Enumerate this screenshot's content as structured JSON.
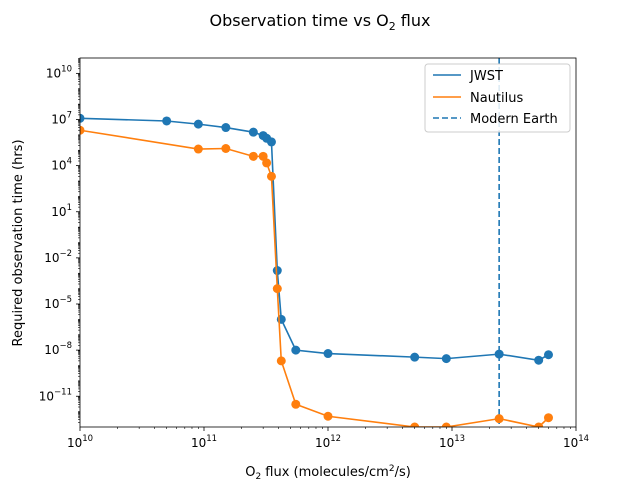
{
  "chart_data": {
    "type": "line",
    "title": {
      "pre": "Observation time vs O",
      "sub": "2",
      "post": " flux"
    },
    "xlabel": {
      "pre": "O",
      "sub1": "2",
      "mid": " flux (molecules/cm",
      "sup": "2",
      "post": "/s)"
    },
    "ylabel": "Required observation time (hrs)",
    "xscale": "log",
    "yscale": "log",
    "xlim": [
      10000000000.0,
      100000000000000.0
    ],
    "ylim": [
      1e-13,
      100000000000.0
    ],
    "xticks": [
      {
        "exp": 10,
        "label": "10",
        "sup": "10"
      },
      {
        "exp": 11,
        "label": "10",
        "sup": "11"
      },
      {
        "exp": 12,
        "label": "10",
        "sup": "12"
      },
      {
        "exp": 13,
        "label": "10",
        "sup": "13"
      },
      {
        "exp": 14,
        "label": "10",
        "sup": "14"
      }
    ],
    "yticks": [
      {
        "exp": -11,
        "label": "10",
        "sup": "−11"
      },
      {
        "exp": -8,
        "label": "10",
        "sup": "−8"
      },
      {
        "exp": -5,
        "label": "10",
        "sup": "−5"
      },
      {
        "exp": -2,
        "label": "10",
        "sup": "−2"
      },
      {
        "exp": 1,
        "label": "10",
        "sup": "1"
      },
      {
        "exp": 4,
        "label": "10",
        "sup": "4"
      },
      {
        "exp": 7,
        "label": "10",
        "sup": "7"
      },
      {
        "exp": 10,
        "label": "10",
        "sup": "10"
      }
    ],
    "grid": false,
    "legend_position": "top-right",
    "series": [
      {
        "name": "JWST",
        "color": "#1f77b4",
        "marker": "circle",
        "x": [
          10000000000.0,
          50000000000.0,
          90000000000.0,
          150000000000.0,
          250000000000.0,
          300000000000.0,
          320000000000.0,
          350000000000.0,
          390000000000.0,
          420000000000.0,
          550000000000.0,
          1000000000000.0,
          5000000000000.0,
          9000000000000.0,
          24000000000000.0,
          50000000000000.0,
          60000000000000.0
        ],
        "y": [
          12000000.0,
          8000000.0,
          5000000.0,
          3000000.0,
          1500000.0,
          900000.0,
          600000.0,
          350000.0,
          0.0015,
          1e-06,
          1e-08,
          6e-09,
          3.5e-09,
          2.8e-09,
          5.5e-09,
          2.2e-09,
          5e-09
        ]
      },
      {
        "name": "Nautilus",
        "color": "#ff7f0e",
        "marker": "circle",
        "x": [
          10000000000.0,
          90000000000.0,
          150000000000.0,
          250000000000.0,
          300000000000.0,
          320000000000.0,
          350000000000.0,
          390000000000.0,
          420000000000.0,
          550000000000.0,
          1000000000000.0,
          5000000000000.0,
          9000000000000.0,
          24000000000000.0,
          50000000000000.0,
          60000000000000.0
        ],
        "y": [
          2000000.0,
          120000.0,
          130000.0,
          40000.0,
          40000.0,
          15000.0,
          2000.0,
          0.0001,
          2e-09,
          3e-12,
          5e-13,
          1e-13,
          1e-13,
          3.5e-13,
          1e-13,
          4e-13
        ]
      }
    ],
    "vlines": [
      {
        "name": "Modern Earth",
        "x": 24000000000000.0,
        "color": "#1f77b4",
        "style": "dashed"
      }
    ]
  }
}
